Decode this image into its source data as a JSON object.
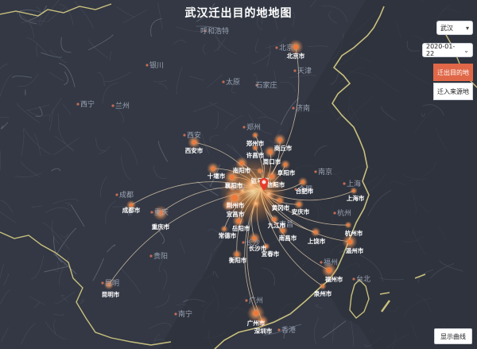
{
  "title": "武汉迁出目的地地图",
  "controls": {
    "city_select": "武汉",
    "date_select": "2020-01-22",
    "tabs": [
      {
        "label": "迁出目的地",
        "active": true
      },
      {
        "label": "迁入来源地",
        "active": false
      }
    ],
    "show_curve_label": "显示曲线"
  },
  "colors": {
    "background": "#333844",
    "active_tab": "#e06848",
    "flow_line": "#f3d9b8",
    "city_dot": "#ee7a3a",
    "origin_marker": "#e83a2a",
    "province_label": "#9aa2b2",
    "city_label": "#ffffff",
    "coastline": "#c9c07e"
  },
  "origin": {
    "name": "武汉",
    "icon": "map-pin-icon"
  },
  "province_labels": [
    "呼和浩特",
    "北京",
    "天津",
    "银川",
    "太原",
    "石家庄",
    "西宁",
    "兰州",
    "济南",
    "西安",
    "郑州",
    "合肥",
    "南京",
    "上海",
    "成都",
    "重庆",
    "杭州",
    "贵阳",
    "长沙",
    "南昌",
    "福州",
    "台北",
    "昆明",
    "南宁",
    "广州",
    "香港",
    "武汉"
  ],
  "destination_labels": [
    "北京市",
    "西安市",
    "郑州市",
    "许昌市",
    "商丘市",
    "南阳市",
    "周口市",
    "十堰市",
    "驻马店",
    "阜阳市",
    "襄阳市",
    "信阳市",
    "合肥市",
    "上海市",
    "荆州市",
    "黄冈市",
    "安庆市",
    "成都市",
    "宜昌市",
    "九江市",
    "重庆市",
    "岳阳市",
    "常德市",
    "南昌市",
    "上饶市",
    "杭州市",
    "长沙市",
    "宜春市",
    "温州市",
    "衡阳市",
    "福州市",
    "泉州市",
    "昆明市",
    "广州市",
    "深圳市"
  ]
}
